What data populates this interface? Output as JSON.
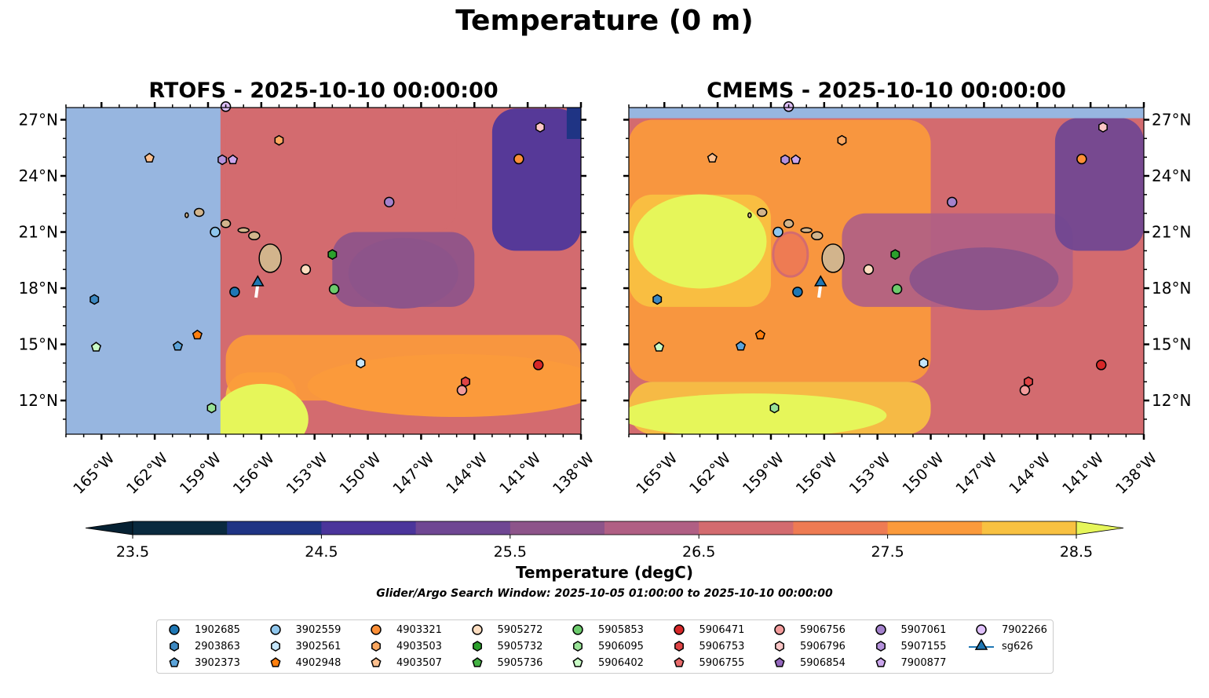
{
  "figure": {
    "title": "Temperature (0 m)",
    "colorbar_label": "Temperature (degC)",
    "search_window": "Glider/Argo Search Window: 2025-10-05 01:00:00 to 2025-10-10 00:00:00"
  },
  "chart_data": {
    "type": "heatmap",
    "title": "Temperature (0 m)",
    "panels": [
      {
        "name": "RTOFS",
        "title": "RTOFS - 2025-10-10 00:00:00",
        "note": "Model data only east of ~158.3°W (west side masked)"
      },
      {
        "name": "CMEMS",
        "title": "CMEMS - 2025-10-10 00:00:00",
        "note": "Model data below ~27.1°N"
      }
    ],
    "xlabel": "Longitude",
    "ylabel": "Latitude",
    "xlim": [
      -167,
      -138
    ],
    "ylim": [
      10.2,
      27.65
    ],
    "xticks": [
      -165,
      -162,
      -159,
      -156,
      -153,
      -150,
      -147,
      -144,
      -141,
      -138
    ],
    "xtick_labels": [
      "165°W",
      "162°W",
      "159°W",
      "156°W",
      "153°W",
      "150°W",
      "147°W",
      "144°W",
      "141°W",
      "138°W"
    ],
    "yticks": [
      12,
      15,
      18,
      21,
      24,
      27
    ],
    "ytick_labels": [
      "12°N",
      "15°N",
      "18°N",
      "21°N",
      "24°N",
      "27°N"
    ],
    "colorbar": {
      "label": "Temperature (degC)",
      "levels": [
        23.5,
        24.0,
        24.5,
        25.0,
        25.5,
        26.0,
        26.5,
        27.0,
        27.5,
        28.0,
        28.5
      ],
      "tick_values": [
        23.5,
        24.5,
        25.5,
        26.5,
        27.5,
        28.5
      ],
      "tick_labels": [
        "23.5",
        "24.5",
        "25.5",
        "26.5",
        "27.5",
        "28.5"
      ],
      "colors": [
        "#0a2a3f",
        "#1f3484",
        "#4b359b",
        "#6f4793",
        "#8d548a",
        "#b05f84",
        "#d36b6f",
        "#ee7b53",
        "#fb9a3b",
        "#f8c141"
      ],
      "under_color": "#062133",
      "over_color": "#e6f65a",
      "extend": "both"
    },
    "mask_color": "#97b6e0",
    "land_color": "#d2b48c",
    "temperature_regions": {
      "RTOFS": [
        {
          "desc": "NE corner",
          "lon": [
            -143,
            -138
          ],
          "lat": [
            20,
            27.6
          ],
          "value_range": [
            24.0,
            25.5
          ]
        },
        {
          "desc": "central basin",
          "lon": [
            -152,
            -144
          ],
          "lat": [
            17,
            21
          ],
          "value_range": [
            25.5,
            26.0
          ]
        },
        {
          "desc": "north-central",
          "lon": [
            -158,
            -145
          ],
          "lat": [
            21,
            27.6
          ],
          "value_range": [
            26.0,
            27.0
          ]
        },
        {
          "desc": "south band",
          "lon": [
            -158,
            -138
          ],
          "lat": [
            12,
            15.5
          ],
          "value_range": [
            27.0,
            28.0
          ]
        },
        {
          "desc": "far south west",
          "lon": [
            -158,
            -154
          ],
          "lat": [
            10.2,
            13.5
          ],
          "value_range": [
            28.0,
            28.5
          ]
        }
      ],
      "CMEMS": [
        {
          "desc": "NE corner",
          "lon": [
            -143,
            -138
          ],
          "lat": [
            20,
            27.1
          ],
          "value_range": [
            24.5,
            25.5
          ]
        },
        {
          "desc": "central",
          "lon": [
            -155,
            -142
          ],
          "lat": [
            17,
            22
          ],
          "value_range": [
            25.5,
            26.5
          ]
        },
        {
          "desc": "west warm pool",
          "lon": [
            -167,
            -159
          ],
          "lat": [
            17,
            23
          ],
          "value_range": [
            28.0,
            28.5
          ]
        },
        {
          "desc": "southwest",
          "lon": [
            -167,
            -150
          ],
          "lat": [
            10.2,
            13
          ],
          "value_range": [
            28.0,
            28.5
          ]
        },
        {
          "desc": "west and south",
          "lon": [
            -167,
            -150
          ],
          "lat": [
            13,
            27
          ],
          "value_range": [
            27.0,
            28.0
          ]
        }
      ]
    },
    "series": [
      {
        "name": "1902685",
        "marker": "circle",
        "color": "#1f77b4",
        "lon": -157.5,
        "lat": 17.8
      },
      {
        "name": "2903863",
        "marker": "hexagon",
        "color": "#3d88c1",
        "lon": -165.4,
        "lat": 17.4
      },
      {
        "name": "3902373",
        "marker": "pentagon",
        "color": "#5ba3d9",
        "lon": -160.7,
        "lat": 14.9
      },
      {
        "name": "3902559",
        "marker": "circle",
        "color": "#8fc6ec",
        "lon": -158.6,
        "lat": 21.0
      },
      {
        "name": "3902561",
        "marker": "hexagon",
        "color": "#c5e6fb",
        "lon": -150.4,
        "lat": 14.0
      },
      {
        "name": "4902948",
        "marker": "pentagon",
        "color": "#ff7f0e",
        "lon": -159.6,
        "lat": 15.5
      },
      {
        "name": "4903321",
        "marker": "circle",
        "color": "#fd8f37",
        "lon": -141.5,
        "lat": 24.9
      },
      {
        "name": "4903503",
        "marker": "hexagon",
        "color": "#fda860",
        "lon": -155.0,
        "lat": 25.9
      },
      {
        "name": "4903507",
        "marker": "pentagon",
        "color": "#fdc08f",
        "lon": -162.3,
        "lat": 24.95
      },
      {
        "name": "5905272",
        "marker": "circle",
        "color": "#fdddc0",
        "lon": -153.5,
        "lat": 19.0
      },
      {
        "name": "5905732",
        "marker": "hexagon",
        "color": "#2ca02c",
        "lon": -152.0,
        "lat": 19.8
      },
      {
        "name": "5905736",
        "marker": "pentagon",
        "color": "#44b244",
        "lon": null,
        "lat": null
      },
      {
        "name": "5905853",
        "marker": "circle",
        "color": "#6ccb6c",
        "lon": -151.9,
        "lat": 17.95
      },
      {
        "name": "5906095",
        "marker": "hexagon",
        "color": "#98e296",
        "lon": -158.8,
        "lat": 11.6
      },
      {
        "name": "5906402",
        "marker": "pentagon",
        "color": "#c9fbc6",
        "lon": -165.3,
        "lat": 14.85
      },
      {
        "name": "5906471",
        "marker": "circle",
        "color": "#d62728",
        "lon": -140.4,
        "lat": 13.9
      },
      {
        "name": "5906753",
        "marker": "hexagon",
        "color": "#df4445",
        "lon": -144.5,
        "lat": 13.0
      },
      {
        "name": "5906755",
        "marker": "pentagon",
        "color": "#e86a6a",
        "lon": null,
        "lat": null
      },
      {
        "name": "5906756",
        "marker": "circle",
        "color": "#f29b9b",
        "lon": -144.7,
        "lat": 12.55
      },
      {
        "name": "5906796",
        "marker": "hexagon",
        "color": "#fcc6c6",
        "lon": -140.3,
        "lat": 26.6
      },
      {
        "name": "5906854",
        "marker": "pentagon",
        "color": "#9467bd",
        "lon": null,
        "lat": null
      },
      {
        "name": "5907061",
        "marker": "circle",
        "color": "#a482cc",
        "lon": -148.8,
        "lat": 22.6
      },
      {
        "name": "5907155",
        "marker": "hexagon",
        "color": "#b592dc",
        "lon": -158.2,
        "lat": 24.86
      },
      {
        "name": "7900877",
        "marker": "pentagon",
        "color": "#cba6ec",
        "lon": -157.6,
        "lat": 24.86
      },
      {
        "name": "7902266",
        "marker": "circle",
        "color": "#dfc0fb",
        "lon": -158.0,
        "lat": 27.7
      },
      {
        "name": "sg626",
        "marker": "triangle",
        "color": "#1f77b4",
        "lon": -156.2,
        "lat": 18.3,
        "track": [
          [
            -156.2,
            18.2
          ],
          [
            -156.3,
            17.5
          ]
        ]
      }
    ],
    "legend": {
      "placement": "bottom-center",
      "columns": 10,
      "entries": [
        "1902685",
        "2903863",
        "3902373",
        "3902559",
        "3902561",
        "4902948",
        "4903321",
        "4903503",
        "4903507",
        "5905272",
        "5905732",
        "5905736",
        "5905853",
        "5906095",
        "5906402",
        "5906471",
        "5906753",
        "5906755",
        "5906756",
        "5906796",
        "5906854",
        "5907061",
        "5907155",
        "7900877",
        "7902266",
        "sg626"
      ]
    }
  }
}
